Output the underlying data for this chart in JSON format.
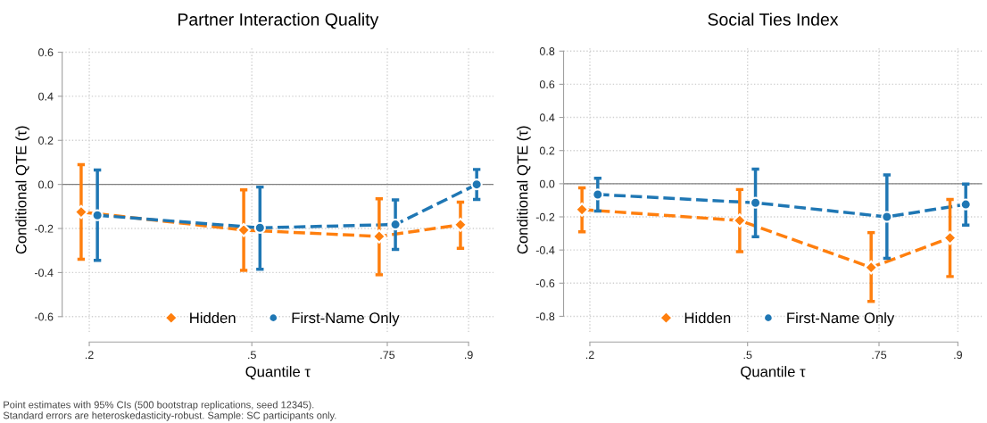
{
  "chart_data": [
    {
      "type": "line",
      "title": "Partner Interaction Quality",
      "xlabel": "Quantile τ",
      "ylabel": "Conditional QTE (τ)",
      "xlim": [
        0.15,
        0.946
      ],
      "xticks": [
        {
          "value": 0.2,
          "label": ".2"
        },
        {
          "value": 0.5,
          "label": ".5"
        },
        {
          "value": 0.75,
          "label": ".75"
        },
        {
          "value": 0.9,
          "label": ".9"
        }
      ],
      "ylim": [
        -0.67,
        0.62
      ],
      "yticks": [
        {
          "value": -0.6,
          "label": "-0.6"
        },
        {
          "value": -0.4,
          "label": "-0.4"
        },
        {
          "value": -0.2,
          "label": "-0.2"
        },
        {
          "value": 0,
          "label": "0.0"
        },
        {
          "value": 0.2,
          "label": "0.2"
        },
        {
          "value": 0.4,
          "label": "0.4"
        },
        {
          "value": 0.6,
          "label": "0.6"
        }
      ],
      "grid": true,
      "legend": "bottom",
      "line_style": "dashed",
      "ref_lines": [
        {
          "axis": "y",
          "value": 0,
          "color": "#808080",
          "line_style": "solid"
        }
      ],
      "series": [
        {
          "name": "Hidden",
          "color": "#ff7f0e",
          "marker": "diamond",
          "x": [
            0.185,
            0.485,
            0.735,
            0.885
          ],
          "values": [
            -0.125,
            -0.207,
            -0.236,
            -0.183
          ],
          "errors": [
            [
              -0.34,
              0.09
            ],
            [
              -0.39,
              -0.025
            ],
            [
              -0.41,
              -0.065
            ],
            [
              -0.29,
              -0.08
            ]
          ]
        },
        {
          "name": "First-Name Only",
          "color": "#1f77b4",
          "marker": "circle",
          "x": [
            0.215,
            0.515,
            0.765,
            0.915
          ],
          "values": [
            -0.14,
            -0.197,
            -0.182,
            0.0
          ],
          "errors": [
            [
              -0.345,
              0.065
            ],
            [
              -0.385,
              -0.012
            ],
            [
              -0.295,
              -0.07
            ],
            [
              -0.068,
              0.068
            ]
          ]
        }
      ]
    },
    {
      "type": "line",
      "title": "Social Ties Index",
      "xlabel": "Quantile τ",
      "ylabel": "Conditional QTE (τ)",
      "xlim": [
        0.15,
        0.946
      ],
      "xticks": [
        {
          "value": 0.2,
          "label": ".2"
        },
        {
          "value": 0.5,
          "label": ".5"
        },
        {
          "value": 0.75,
          "label": ".75"
        },
        {
          "value": 0.9,
          "label": ".9"
        }
      ],
      "ylim": [
        -0.895,
        0.82
      ],
      "yticks": [
        {
          "value": -0.8,
          "label": "-0.8"
        },
        {
          "value": -0.6,
          "label": "-0.6"
        },
        {
          "value": -0.4,
          "label": "-0.4"
        },
        {
          "value": -0.2,
          "label": "-0.2"
        },
        {
          "value": 0,
          "label": "0.0"
        },
        {
          "value": 0.2,
          "label": "0.2"
        },
        {
          "value": 0.4,
          "label": "0.4"
        },
        {
          "value": 0.6,
          "label": "0.6"
        },
        {
          "value": 0.8,
          "label": "0.8"
        }
      ],
      "grid": true,
      "legend": "bottom",
      "line_style": "dashed",
      "ref_lines": [
        {
          "axis": "y",
          "value": 0,
          "color": "#808080",
          "line_style": "solid"
        }
      ],
      "series": [
        {
          "name": "Hidden",
          "color": "#ff7f0e",
          "marker": "diamond",
          "x": [
            0.185,
            0.485,
            0.735,
            0.885
          ],
          "values": [
            -0.156,
            -0.222,
            -0.505,
            -0.327
          ],
          "errors": [
            [
              -0.29,
              -0.025
            ],
            [
              -0.41,
              -0.035
            ],
            [
              -0.71,
              -0.295
            ],
            [
              -0.56,
              -0.095
            ]
          ]
        },
        {
          "name": "First-Name Only",
          "color": "#1f77b4",
          "marker": "circle",
          "x": [
            0.215,
            0.515,
            0.765,
            0.915
          ],
          "values": [
            -0.065,
            -0.115,
            -0.2,
            -0.125
          ],
          "errors": [
            [
              -0.165,
              0.033
            ],
            [
              -0.32,
              0.088
            ],
            [
              -0.45,
              0.053
            ],
            [
              -0.25,
              -0.002
            ]
          ]
        }
      ],
      "annotations": [
        "Point estimates with 95% CIs (500 bootstrap replications, seed 12345).\nStandard errors are heteroskedasticity-robust. Sample: SC participants only."
      ]
    }
  ]
}
